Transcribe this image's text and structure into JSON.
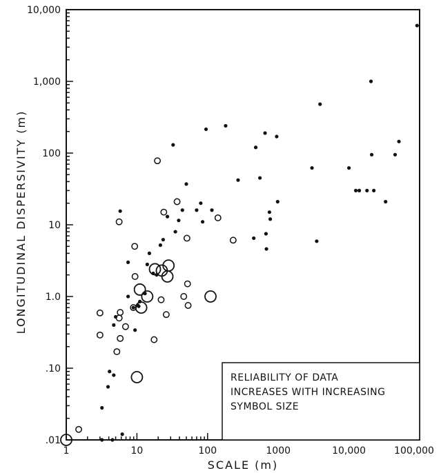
{
  "chart_data": {
    "type": "scatter",
    "xlabel": "SCALE (m)",
    "ylabel": "LONGITUDINAL DISPERSIVITY (m)",
    "xscale": "log",
    "yscale": "log",
    "xlim": [
      1,
      100000
    ],
    "ylim": [
      0.01,
      10000
    ],
    "x_tick_values": [
      1,
      10,
      100,
      1000,
      10000,
      100000
    ],
    "x_tick_labels": [
      "1",
      "10",
      "100",
      "1000",
      "10,000",
      "100,000"
    ],
    "y_tick_values": [
      0.01,
      0.1,
      1,
      10,
      100,
      1000,
      10000
    ],
    "y_tick_labels": [
      ".01",
      ".10",
      "1.0",
      "10",
      "100",
      "1,000",
      "10,000"
    ],
    "grid": false,
    "annotation": [
      "RELIABILITY OF DATA",
      "INCREASES WITH INCREASING",
      "SYMBOL SIZE"
    ],
    "annotation_position": "bottom-right",
    "points": [
      {
        "x": 3.2,
        "y": 0.028,
        "r": 1
      },
      {
        "x": 3.9,
        "y": 0.055,
        "r": 1
      },
      {
        "x": 4.1,
        "y": 0.09,
        "r": 1
      },
      {
        "x": 4.7,
        "y": 0.08,
        "r": 1
      },
      {
        "x": 4.7,
        "y": 0.4,
        "r": 1
      },
      {
        "x": 5.0,
        "y": 0.52,
        "r": 1
      },
      {
        "x": 3.2,
        "y": 0.01,
        "r": 1
      },
      {
        "x": 4.5,
        "y": 0.01,
        "r": 1
      },
      {
        "x": 6.2,
        "y": 0.012,
        "r": 1
      },
      {
        "x": 5.8,
        "y": 15.5,
        "r": 1
      },
      {
        "x": 7.5,
        "y": 3.0,
        "r": 1
      },
      {
        "x": 7.5,
        "y": 1.0,
        "r": 1
      },
      {
        "x": 8.9,
        "y": 0.7,
        "r": 1
      },
      {
        "x": 9.4,
        "y": 0.34,
        "r": 1
      },
      {
        "x": 10.3,
        "y": 0.75,
        "r": 1
      },
      {
        "x": 10.6,
        "y": 0.73,
        "r": 1
      },
      {
        "x": 11.0,
        "y": 0.85,
        "r": 1
      },
      {
        "x": 13.0,
        "y": 1.1,
        "r": 1
      },
      {
        "x": 14.0,
        "y": 2.8,
        "r": 1
      },
      {
        "x": 15.0,
        "y": 4.0,
        "r": 1
      },
      {
        "x": 17.0,
        "y": 2.1,
        "r": 1
      },
      {
        "x": 19.0,
        "y": 2.0,
        "r": 1
      },
      {
        "x": 21.5,
        "y": 5.2,
        "r": 1
      },
      {
        "x": 23.5,
        "y": 6.2,
        "r": 1
      },
      {
        "x": 27.0,
        "y": 13.0,
        "r": 1
      },
      {
        "x": 32.5,
        "y": 130.0,
        "r": 1
      },
      {
        "x": 35.0,
        "y": 8.0,
        "r": 1
      },
      {
        "x": 39.0,
        "y": 11.5,
        "r": 1
      },
      {
        "x": 44.0,
        "y": 16.0,
        "r": 1
      },
      {
        "x": 50.0,
        "y": 37.0,
        "r": 1
      },
      {
        "x": 70.0,
        "y": 16.0,
        "r": 1
      },
      {
        "x": 80.0,
        "y": 20.0,
        "r": 1
      },
      {
        "x": 85.0,
        "y": 11.0,
        "r": 1
      },
      {
        "x": 95.0,
        "y": 215.0,
        "r": 1
      },
      {
        "x": 115.0,
        "y": 16.0,
        "r": 1
      },
      {
        "x": 180.0,
        "y": 240.0,
        "r": 1
      },
      {
        "x": 270.0,
        "y": 42.0,
        "r": 1
      },
      {
        "x": 450.0,
        "y": 6.5,
        "r": 1
      },
      {
        "x": 480.0,
        "y": 120.0,
        "r": 1
      },
      {
        "x": 550.0,
        "y": 45.0,
        "r": 1
      },
      {
        "x": 650.0,
        "y": 190.0,
        "r": 1
      },
      {
        "x": 670.0,
        "y": 7.5,
        "r": 1
      },
      {
        "x": 680.0,
        "y": 4.6,
        "r": 1
      },
      {
        "x": 750.0,
        "y": 15.0,
        "r": 1
      },
      {
        "x": 770.0,
        "y": 12.0,
        "r": 1
      },
      {
        "x": 950.0,
        "y": 170.0,
        "r": 1
      },
      {
        "x": 980.0,
        "y": 21.0,
        "r": 1
      },
      {
        "x": 3000.0,
        "y": 62.0,
        "r": 1
      },
      {
        "x": 3500.0,
        "y": 5.9,
        "r": 1
      },
      {
        "x": 3900.0,
        "y": 480.0,
        "r": 1
      },
      {
        "x": 10000.0,
        "y": 62.0,
        "r": 1
      },
      {
        "x": 12500.0,
        "y": 30.0,
        "r": 1
      },
      {
        "x": 14000.0,
        "y": 30.0,
        "r": 1
      },
      {
        "x": 18000.0,
        "y": 30.0,
        "r": 1
      },
      {
        "x": 20500.0,
        "y": 1000.0,
        "r": 1
      },
      {
        "x": 21000.0,
        "y": 95.0,
        "r": 1
      },
      {
        "x": 22500.0,
        "y": 30.0,
        "r": 1
      },
      {
        "x": 33000.0,
        "y": 21.0,
        "r": 1
      },
      {
        "x": 45000.0,
        "y": 95.0,
        "r": 1
      },
      {
        "x": 51000.0,
        "y": 145.0,
        "r": 1
      },
      {
        "x": 92000.0,
        "y": 6000.0,
        "r": 1
      },
      {
        "x": 1.5,
        "y": 0.014,
        "r": 2
      },
      {
        "x": 3.0,
        "y": 0.59,
        "r": 2
      },
      {
        "x": 3.0,
        "y": 0.29,
        "r": 2
      },
      {
        "x": 5.2,
        "y": 0.17,
        "r": 2
      },
      {
        "x": 5.6,
        "y": 0.5,
        "r": 2
      },
      {
        "x": 5.8,
        "y": 0.6,
        "r": 2
      },
      {
        "x": 5.8,
        "y": 0.26,
        "r": 2
      },
      {
        "x": 5.6,
        "y": 11.0,
        "r": 2
      },
      {
        "x": 6.9,
        "y": 0.38,
        "r": 2
      },
      {
        "x": 8.9,
        "y": 0.7,
        "r": 2
      },
      {
        "x": 9.3,
        "y": 5.0,
        "r": 2
      },
      {
        "x": 9.4,
        "y": 1.9,
        "r": 2
      },
      {
        "x": 17.5,
        "y": 0.25,
        "r": 2
      },
      {
        "x": 19.5,
        "y": 78.0,
        "r": 2
      },
      {
        "x": 22.0,
        "y": 0.9,
        "r": 2
      },
      {
        "x": 24.0,
        "y": 15.0,
        "r": 2
      },
      {
        "x": 26.0,
        "y": 0.56,
        "r": 2
      },
      {
        "x": 37.0,
        "y": 21.0,
        "r": 2
      },
      {
        "x": 46.0,
        "y": 1.0,
        "r": 2
      },
      {
        "x": 51.0,
        "y": 6.5,
        "r": 2
      },
      {
        "x": 52.0,
        "y": 1.5,
        "r": 2
      },
      {
        "x": 53.0,
        "y": 0.75,
        "r": 2
      },
      {
        "x": 140.0,
        "y": 12.5,
        "r": 2
      },
      {
        "x": 230.0,
        "y": 6.1,
        "r": 2
      },
      {
        "x": 11.0,
        "y": 1.25,
        "r": 3
      },
      {
        "x": 14.0,
        "y": 1.0,
        "r": 3
      },
      {
        "x": 11.5,
        "y": 0.7,
        "r": 3
      },
      {
        "x": 18.0,
        "y": 2.4,
        "r": 3
      },
      {
        "x": 22.5,
        "y": 2.3,
        "r": 3
      },
      {
        "x": 28.0,
        "y": 2.7,
        "r": 3
      },
      {
        "x": 27.0,
        "y": 1.9,
        "r": 3
      },
      {
        "x": 110.0,
        "y": 1.0,
        "r": 3
      },
      {
        "x": 10.0,
        "y": 0.075,
        "r": 3
      },
      {
        "x": 1.0,
        "y": 0.01,
        "r": 3
      }
    ]
  }
}
